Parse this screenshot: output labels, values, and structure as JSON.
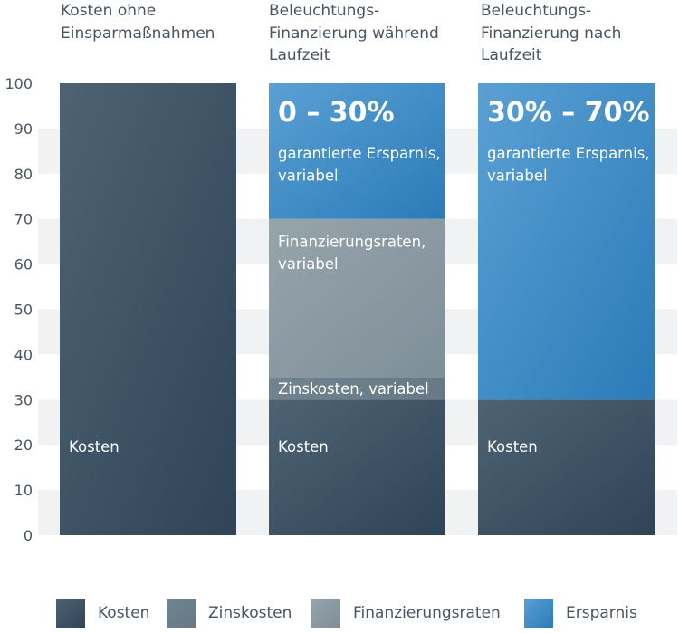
{
  "chart_data": {
    "type": "bar",
    "stacked": true,
    "categories": [
      "Kosten ohne Einsparmaßnahmen",
      "Beleuchtungs-Finanzierung während Laufzeit",
      "Beleuchtungs-Finanzierung nach Laufzeit"
    ],
    "category_lines": [
      [
        "Kosten ohne",
        "Einsparmaßnahmen"
      ],
      [
        "Beleuchtungs-",
        "Finanzierung während",
        "Laufzeit"
      ],
      [
        "Beleuchtungs-",
        "Finanzierung nach",
        "Laufzeit"
      ]
    ],
    "ylim": [
      0,
      100
    ],
    "yticks": [
      0,
      10,
      20,
      30,
      40,
      50,
      60,
      70,
      80,
      90,
      100
    ],
    "grid": "horizontal bands",
    "legend_position": "bottom",
    "series": [
      {
        "name": "Kosten",
        "values": [
          100,
          30,
          30
        ],
        "color": "#34495c"
      },
      {
        "name": "Zinskosten",
        "values": [
          0,
          5,
          0
        ],
        "color": "#6a7d89"
      },
      {
        "name": "Finanzierungsraten",
        "values": [
          0,
          35,
          0
        ],
        "color": "#8a99a2"
      },
      {
        "name": "Ersparnis",
        "values": [
          0,
          30,
          70
        ],
        "color": "#3d8bc4"
      }
    ],
    "segment_labels": [
      [
        {
          "series": "Kosten",
          "lines": [
            "Kosten"
          ]
        }
      ],
      [
        {
          "series": "Kosten",
          "lines": [
            "Kosten"
          ]
        },
        {
          "series": "Zinskosten",
          "lines": [
            "Zinskosten, variabel"
          ]
        },
        {
          "series": "Finanzierungsraten",
          "lines": [
            "Finanzierungsraten,",
            "variabel"
          ]
        },
        {
          "series": "Ersparnis",
          "big": "0 – 30%",
          "lines": [
            "garantierte Ersparnis,",
            "variabel"
          ]
        }
      ],
      [
        {
          "series": "Kosten",
          "lines": [
            "Kosten"
          ]
        },
        {
          "series": "Ersparnis",
          "big": "30% – 70%",
          "lines": [
            "garantierte Ersparnis,",
            "variabel"
          ]
        }
      ]
    ]
  },
  "legend": [
    {
      "label": "Kosten",
      "color": "#34495c"
    },
    {
      "label": "Zinskosten",
      "color": "#6a7d89"
    },
    {
      "label": "Finanzierungsraten",
      "color": "#8a99a2"
    },
    {
      "label": "Ersparnis",
      "color": "#3d8bc4"
    }
  ]
}
